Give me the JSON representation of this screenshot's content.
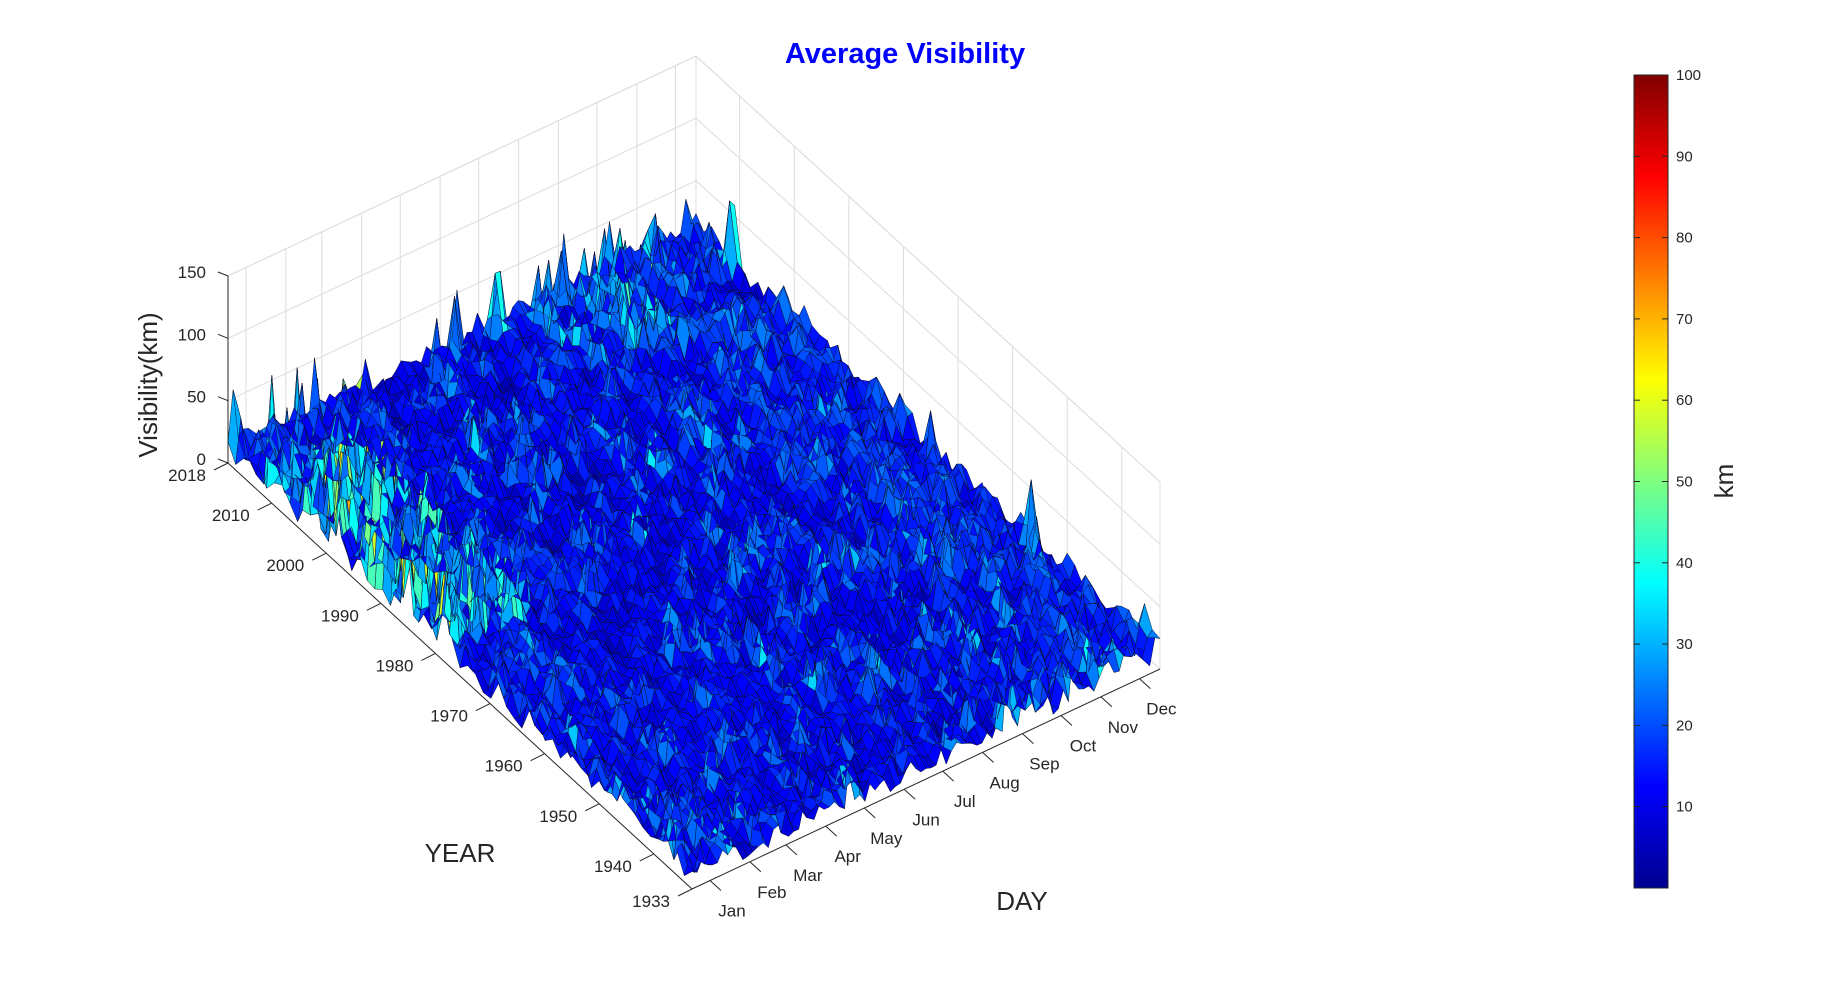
{
  "chart_data": {
    "type": "surface",
    "title": "Average Visibility",
    "xlabel": "DAY",
    "ylabel": "YEAR",
    "zlabel": "Visibility(km)",
    "colorbar_label": "km",
    "x_ticks": [
      "Jan",
      "Feb",
      "Mar",
      "Apr",
      "May",
      "Jun",
      "Jul",
      "Aug",
      "Sep",
      "Oct",
      "Nov",
      "Dec"
    ],
    "y_ticks": [
      1933,
      1940,
      1950,
      1960,
      1970,
      1980,
      1990,
      2000,
      2010,
      2018
    ],
    "z_ticks": [
      0,
      50,
      100,
      150
    ],
    "colorbar_ticks": [
      10,
      20,
      30,
      40,
      50,
      60,
      70,
      80,
      90,
      100
    ],
    "xlim": [
      1,
      365
    ],
    "ylim": [
      1933,
      2018
    ],
    "zlim": [
      0,
      150
    ],
    "clim": [
      0,
      100
    ],
    "colormap": "jet",
    "grid": true,
    "colorbar_position": "right",
    "title_color": "#0000ff",
    "typical_visibility_km": 12,
    "peak_visibility_km": 100,
    "seasonal_profile_km": [
      {
        "month": "Jan",
        "value": 14
      },
      {
        "month": "Feb",
        "value": 13
      },
      {
        "month": "Mar",
        "value": 12
      },
      {
        "month": "Apr",
        "value": 11
      },
      {
        "month": "May",
        "value": 11
      },
      {
        "month": "Jun",
        "value": 11
      },
      {
        "month": "Jul",
        "value": 12
      },
      {
        "month": "Aug",
        "value": 12
      },
      {
        "month": "Sep",
        "value": 13
      },
      {
        "month": "Oct",
        "value": 15
      },
      {
        "month": "Nov",
        "value": 16
      },
      {
        "month": "Dec",
        "value": 15
      }
    ]
  }
}
